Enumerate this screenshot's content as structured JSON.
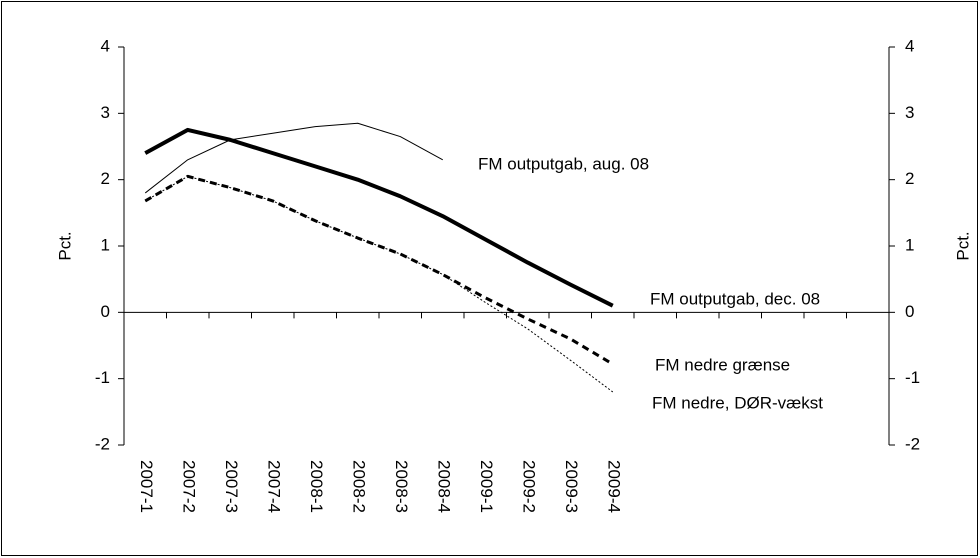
{
  "chart_data": {
    "type": "line",
    "categories": [
      "2007-1",
      "2007-2",
      "2007-3",
      "2007-4",
      "2008-1",
      "2008-2",
      "2008-3",
      "2008-4",
      "2009-1",
      "2009-2",
      "2009-3",
      "2009-4",
      null,
      null,
      null,
      null,
      null,
      null
    ],
    "series": [
      {
        "name": "FM outputgab, aug. 08",
        "color": "#000000",
        "width": 1,
        "dash": "solid",
        "values": [
          1.8,
          2.3,
          2.6,
          2.7,
          2.8,
          2.85,
          2.65,
          2.3,
          null,
          null,
          null,
          null,
          null,
          null,
          null,
          null,
          null,
          null
        ]
      },
      {
        "name": "FM outputgab, dec. 08",
        "color": "#000000",
        "width": 4,
        "dash": "solid",
        "values": [
          2.4,
          2.75,
          2.6,
          2.4,
          2.2,
          2.0,
          1.75,
          1.45,
          1.1,
          0.75,
          0.42,
          0.1,
          null,
          null,
          null,
          null,
          null,
          null
        ]
      },
      {
        "name": "FM nedre grænse",
        "color": "#000000",
        "width": 3,
        "dash": "dashed",
        "values": [
          1.68,
          2.05,
          1.88,
          1.68,
          1.38,
          1.12,
          0.88,
          0.57,
          0.22,
          -0.1,
          -0.4,
          -0.78,
          null,
          null,
          null,
          null,
          null,
          null
        ]
      },
      {
        "name": "FM nedre, DØR-vækst",
        "color": "#000000",
        "width": 1,
        "dash": "dotted",
        "values": [
          1.68,
          2.05,
          1.88,
          1.68,
          1.38,
          1.12,
          0.88,
          0.57,
          0.15,
          -0.25,
          -0.72,
          -1.2,
          null,
          null,
          null,
          null,
          null,
          null
        ]
      }
    ],
    "ylabel": "Pct.",
    "y2label": "Pct.",
    "ylim": [
      -2,
      4
    ],
    "yticks": [
      -2,
      -1,
      0,
      1,
      2,
      3,
      4
    ],
    "y2lim": [
      -2,
      4
    ],
    "y2ticks": [
      -2,
      -1,
      0,
      1,
      2,
      3,
      4
    ],
    "grid": false
  }
}
